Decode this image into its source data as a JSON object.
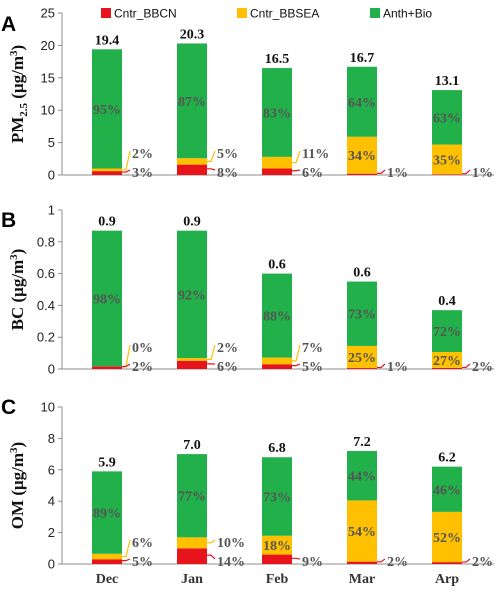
{
  "colors": {
    "bbcn": "#e8141c",
    "bbsea": "#ffc000",
    "anth": "#22b04a",
    "axis": "#8c8c8c",
    "leader": "#e8141c",
    "leader2": "#ffc000"
  },
  "legend": [
    {
      "label": "Cntr_BBCN",
      "color": "#e8141c"
    },
    {
      "label": "Cntr_BBSEA",
      "color": "#ffc000"
    },
    {
      "label": "Anth+Bio",
      "color": "#22b04a"
    }
  ],
  "chart_data": [
    {
      "type": "bar",
      "panel": "A",
      "ylabel_main": "PM",
      "ylabel_sub": "2.5",
      "ylabel_unit": " (μg/m",
      "ylabel_sup": "3",
      "ylabel_end": ")",
      "ylim": [
        0,
        25
      ],
      "yticks": [
        "0",
        "5",
        "10",
        "15",
        "20",
        "25"
      ],
      "categories": [
        "Dec",
        "Jan",
        "Feb",
        "Mar",
        "Arp"
      ],
      "series": [
        {
          "name": "Cntr_BBCN",
          "values": [
            0.6,
            1.6,
            1.0,
            0.2,
            0.1
          ]
        },
        {
          "name": "Cntr_BBSEA",
          "values": [
            0.4,
            1.0,
            1.8,
            5.7,
            4.6
          ]
        },
        {
          "name": "Anth+Bio",
          "values": [
            18.4,
            17.7,
            13.7,
            10.8,
            8.4
          ]
        }
      ],
      "totals": [
        "19.4",
        "20.3",
        "16.5",
        "16.7",
        "13.1"
      ],
      "pct_anth": [
        "95%",
        "87%",
        "83%",
        "64%",
        "63%"
      ],
      "pct_bbsea": [
        "2%",
        "5%",
        "11%",
        "34%",
        "35%"
      ],
      "pct_bbcn": [
        "3%",
        "8%",
        "6%",
        "1%",
        "1%"
      ]
    },
    {
      "type": "bar",
      "panel": "B",
      "ylabel_main": "BC",
      "ylabel_sub": "",
      "ylabel_unit": " (μg/m",
      "ylabel_sup": "3",
      "ylabel_end": ")",
      "ylim": [
        0,
        1
      ],
      "yticks": [
        "0",
        "0.2",
        "0.4",
        "0.6",
        "0.8",
        "1"
      ],
      "categories": [
        "Dec",
        "Jan",
        "Feb",
        "Mar",
        "Arp"
      ],
      "series": [
        {
          "name": "Cntr_BBCN",
          "values": [
            0.017,
            0.052,
            0.03,
            0.006,
            0.007
          ]
        },
        {
          "name": "Cntr_BBSEA",
          "values": [
            0.0,
            0.017,
            0.042,
            0.139,
            0.1
          ]
        },
        {
          "name": "Anth+Bio",
          "values": [
            0.853,
            0.801,
            0.528,
            0.405,
            0.263
          ]
        }
      ],
      "totals": [
        "0.9",
        "0.9",
        "0.6",
        "0.6",
        "0.4"
      ],
      "pct_anth": [
        "98%",
        "92%",
        "88%",
        "73%",
        "72%"
      ],
      "pct_bbsea": [
        "0%",
        "2%",
        "7%",
        "25%",
        "27%"
      ],
      "pct_bbcn": [
        "2%",
        "6%",
        "5%",
        "1%",
        "2%"
      ]
    },
    {
      "type": "bar",
      "panel": "C",
      "ylabel_main": "OM",
      "ylabel_sub": "",
      "ylabel_unit": " (μg/m",
      "ylabel_sup": "3",
      "ylabel_end": ")",
      "ylim": [
        0,
        10
      ],
      "yticks": [
        "0",
        "2",
        "4",
        "6",
        "8",
        "10"
      ],
      "categories": [
        "Dec",
        "Jan",
        "Feb",
        "Mar",
        "Arp"
      ],
      "series": [
        {
          "name": "Cntr_BBCN",
          "values": [
            0.3,
            1.0,
            0.6,
            0.15,
            0.12
          ]
        },
        {
          "name": "Cntr_BBSEA",
          "values": [
            0.35,
            0.7,
            1.2,
            3.9,
            3.2
          ]
        },
        {
          "name": "Anth+Bio",
          "values": [
            5.25,
            5.3,
            5.0,
            3.15,
            2.88
          ]
        }
      ],
      "totals": [
        "5.9",
        "7.0",
        "6.8",
        "7.2",
        "6.2"
      ],
      "pct_anth": [
        "89%",
        "77%",
        "73%",
        "44%",
        "46%"
      ],
      "pct_bbsea": [
        "6%",
        "10%",
        "18%",
        "54%",
        "52%"
      ],
      "pct_bbcn": [
        "5%",
        "14%",
        "9%",
        "2%",
        "2%"
      ]
    }
  ]
}
